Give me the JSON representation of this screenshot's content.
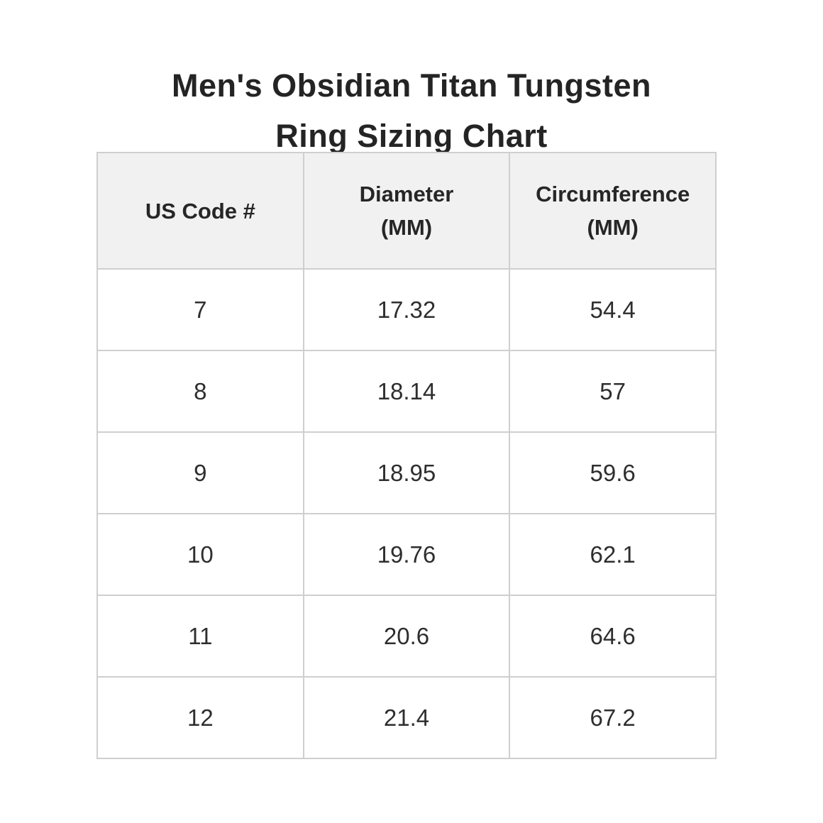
{
  "page": {
    "background": "#ffffff",
    "text_color": "#242424"
  },
  "title": {
    "full": "Men's Obsidian Titan Tungsten Ring Sizing Chart",
    "line1": "Men's Obsidian Titan Tungsten",
    "line2": "Ring Sizing Chart"
  },
  "table": {
    "header_bg": "#f1f1f1",
    "border_color": "#cfcfcf",
    "columns": [
      {
        "label": "US Code #",
        "line1": "US Code #",
        "line2": ""
      },
      {
        "label": "Diameter (MM)",
        "line1": "Diameter",
        "line2": "(MM)"
      },
      {
        "label": "Circumference (MM)",
        "line1": "Circumference",
        "line2": "(MM)"
      }
    ],
    "rows": [
      {
        "us_code": "7",
        "diameter_mm": "17.32",
        "circumference_mm": "54.4"
      },
      {
        "us_code": "8",
        "diameter_mm": "18.14",
        "circumference_mm": "57"
      },
      {
        "us_code": "9",
        "diameter_mm": "18.95",
        "circumference_mm": "59.6"
      },
      {
        "us_code": "10",
        "diameter_mm": "19.76",
        "circumference_mm": "62.1"
      },
      {
        "us_code": "11",
        "diameter_mm": "20.6",
        "circumference_mm": "64.6"
      },
      {
        "us_code": "12",
        "diameter_mm": "21.4",
        "circumference_mm": "67.2"
      }
    ]
  },
  "chart_data": {
    "type": "table",
    "title": "Men's Obsidian Titan Tungsten Ring Sizing Chart",
    "columns": [
      "US Code #",
      "Diameter (MM)",
      "Circumference (MM)"
    ],
    "rows": [
      [
        "7",
        "17.32",
        "54.4"
      ],
      [
        "8",
        "18.14",
        "57"
      ],
      [
        "9",
        "18.95",
        "59.6"
      ],
      [
        "10",
        "19.76",
        "62.1"
      ],
      [
        "11",
        "20.6",
        "64.6"
      ],
      [
        "12",
        "21.4",
        "67.2"
      ]
    ]
  }
}
